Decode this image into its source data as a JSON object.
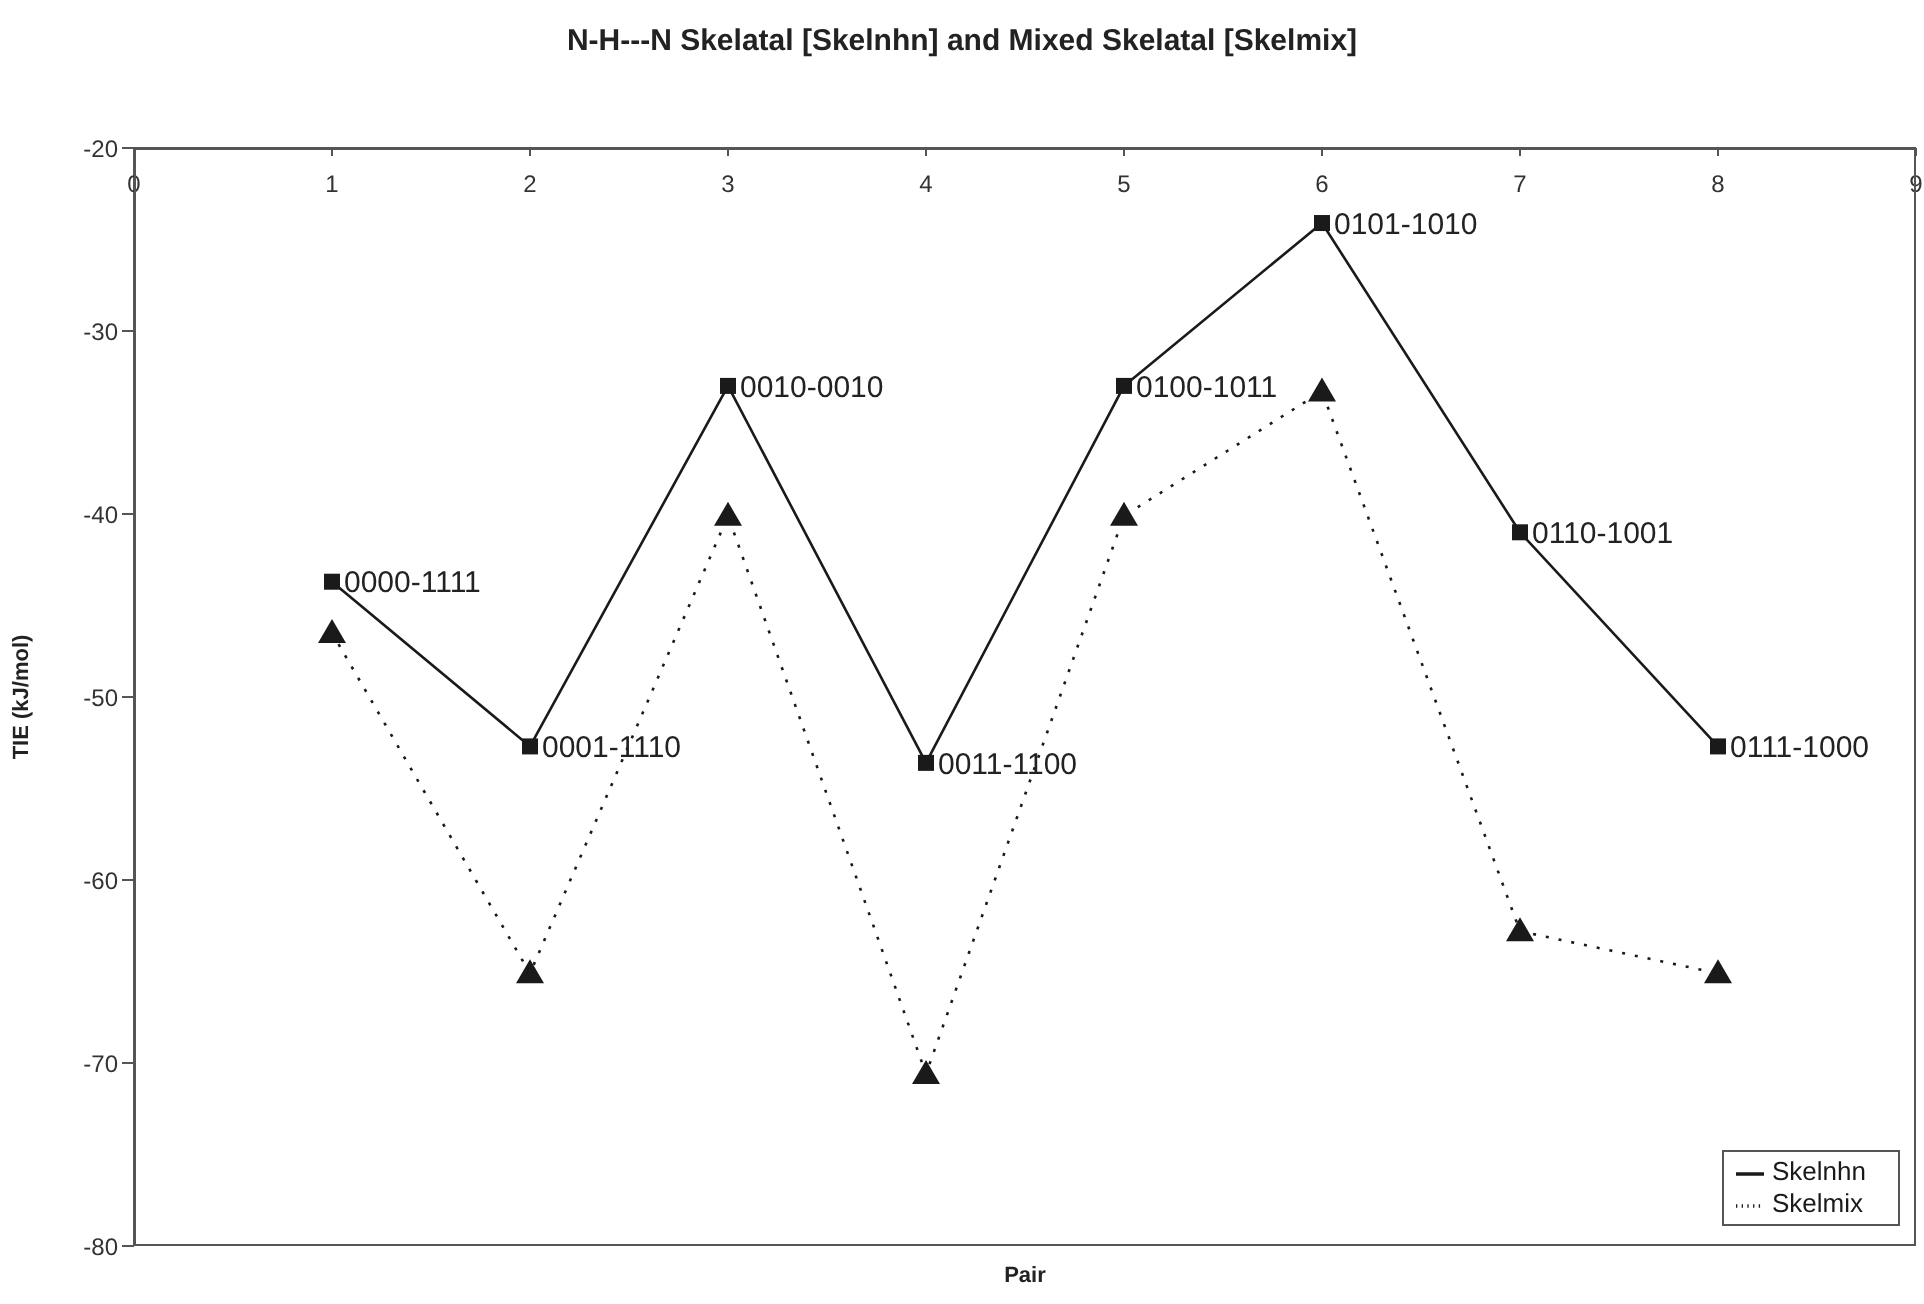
{
  "chart_data": {
    "type": "line",
    "title": "N-H---N Skelatal [Skelnhn] and Mixed Skelatal [Skelmix]",
    "xlabel": "Pair",
    "ylabel": "TIE (kJ/mol)",
    "x": [
      1,
      2,
      3,
      4,
      5,
      6,
      7,
      8
    ],
    "xlim": [
      0,
      9
    ],
    "xticks": [
      0,
      1,
      2,
      3,
      4,
      5,
      6,
      7,
      8,
      9
    ],
    "ylim": [
      -80,
      -20
    ],
    "yticks": [
      -80,
      -70,
      -60,
      -50,
      -40,
      -30,
      -20
    ],
    "grid": false,
    "legend": "bottom right",
    "series": [
      {
        "name": "Skelnhn",
        "color": "#1a1a1a",
        "marker": "square",
        "line_style": "solid",
        "values": [
          -43.7,
          -52.7,
          -33.0,
          -53.6,
          -33.0,
          -24.1,
          -41.0,
          -52.7
        ]
      },
      {
        "name": "Skelmix",
        "color": "#1a1a1a",
        "marker": "triangle",
        "line_style": "dotted",
        "values": [
          -46.5,
          -65.1,
          -40.1,
          -70.6,
          -40.1,
          -33.3,
          -62.8,
          -65.1
        ]
      }
    ],
    "annotations": [
      {
        "text": "0000-1111",
        "x": 1,
        "y": -43.7
      },
      {
        "text": "0001-1110",
        "x": 2,
        "y": -52.7
      },
      {
        "text": "0010-0010",
        "x": 3,
        "y": -33.0
      },
      {
        "text": "0011-1100",
        "x": 4,
        "y": -53.6
      },
      {
        "text": "0100-1011",
        "x": 5,
        "y": -33.0
      },
      {
        "text": "0101-1010",
        "x": 6,
        "y": -24.1
      },
      {
        "text": "0110-1001",
        "x": 7,
        "y": -41.0
      },
      {
        "text": "0111-1000",
        "x": 8,
        "y": -52.7
      }
    ]
  }
}
